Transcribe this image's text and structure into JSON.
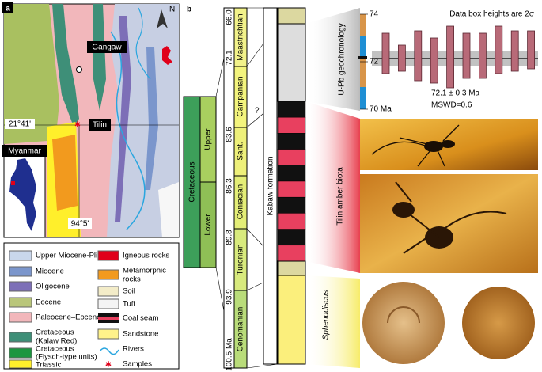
{
  "panel_a": {
    "label": "a",
    "north": "N",
    "places": [
      "Gangaw",
      "Tilin"
    ],
    "latitude": "21°41'",
    "longitude": "94°5'",
    "inset": "Myanmar",
    "legend_left": [
      [
        "Upper Miocene-Pliocene"
      ],
      [
        "Miocene"
      ],
      [
        "Oligocene"
      ],
      [
        "Eocene"
      ],
      [
        "Paleocene–Eocene"
      ],
      [
        "Cretaceous",
        "(Kalaw Red)"
      ],
      [
        "Cretaceous",
        "(Flysch-type units)"
      ],
      [
        "Triassic"
      ]
    ],
    "legend_right": [
      [
        "Igneous rocks"
      ],
      [
        "Metamorphic",
        "rocks"
      ],
      [
        "Soil"
      ],
      [
        "Tuff"
      ],
      [
        "Coal seam"
      ],
      [
        "Sandstone"
      ],
      [
        "Rivers"
      ],
      [
        "Samples"
      ]
    ]
  },
  "panel_b": {
    "label": "b",
    "period": "Cretaceous",
    "epochs": [
      "Upper",
      "Lower"
    ],
    "stages": [
      "Maastrichtian",
      "Campanian",
      "Sant.",
      "Coniacian",
      "Turonian",
      "Cenomanian"
    ],
    "ages": [
      "66.0",
      "72.1",
      "83.6",
      "86.3",
      "89.8",
      "93.9",
      "100.5 Ma"
    ],
    "uncertain": "?",
    "formation": "Kabaw formation",
    "upb": {
      "title": "U-Pb geochronology",
      "note": "Data box heights are 2σ",
      "yticks": [
        {
          "value": 74,
          "label": "74"
        },
        72,
        {
          "value": 70,
          "label": "70 Ma"
        }
      ],
      "boxes": [
        [
          71.5,
          73.2
        ],
        [
          71.6,
          72.7
        ],
        [
          71.2,
          73.3
        ],
        [
          71.1,
          73.0
        ],
        [
          70.9,
          73.5
        ],
        [
          71.3,
          73.2
        ],
        [
          71.3,
          73.2
        ],
        [
          71.5,
          73.5
        ],
        [
          71.6,
          73.3
        ],
        [
          71.7,
          73.3
        ]
      ],
      "age": "72.1 ± 0.3 Ma",
      "mswd": "MSWD=0.6"
    },
    "biota": "Tilin amber biota",
    "fossil": "Sphenodiscus"
  }
}
